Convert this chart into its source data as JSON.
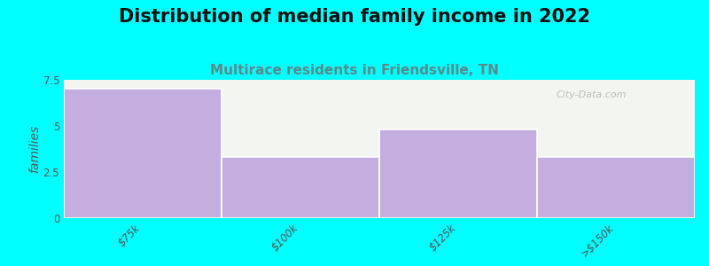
{
  "title": "Distribution of median family income in 2022",
  "subtitle": "Multirace residents in Friendsville, TN",
  "categories": [
    "$75k",
    "$100k",
    "$125k",
    ">$150k"
  ],
  "values": [
    7.0,
    3.3,
    4.8,
    3.3
  ],
  "bar_color": "#C4AEE0",
  "background_color": "#00FFFF",
  "plot_bg_color": "#F2F5F0",
  "ylabel": "families",
  "ylim": [
    0,
    7.5
  ],
  "yticks": [
    0,
    2.5,
    5,
    7.5
  ],
  "title_fontsize": 15,
  "subtitle_fontsize": 11,
  "subtitle_color": "#5A8A8A",
  "ylabel_color": "#555555",
  "tick_color": "#555555",
  "watermark": "City-Data.com",
  "separator_color": "#FFFFFF",
  "top_strip_color": "#EAEFE8"
}
